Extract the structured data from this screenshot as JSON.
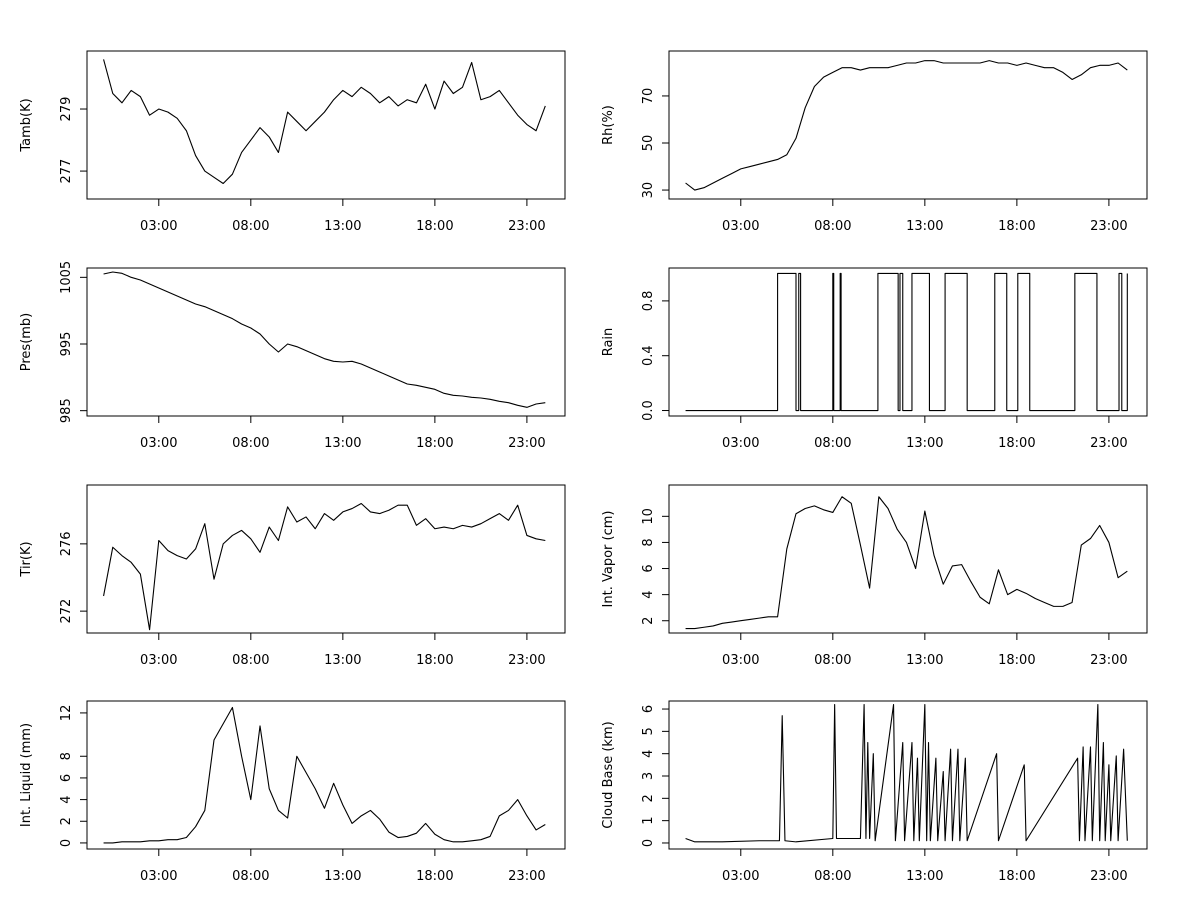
{
  "chart_data": [
    {
      "type": "line",
      "ylabel": "Tamb(K)",
      "color": "#000000",
      "x": [
        0,
        0.5,
        1,
        1.5,
        2,
        2.5,
        3,
        3.5,
        4,
        4.5,
        5,
        5.5,
        6,
        6.5,
        7,
        7.5,
        8,
        8.5,
        9,
        9.5,
        10,
        10.5,
        11,
        11.5,
        12,
        12.5,
        13,
        13.5,
        14,
        14.5,
        15,
        15.5,
        16,
        16.5,
        17,
        17.5,
        18,
        18.5,
        19,
        19.5,
        20,
        20.5,
        21,
        21.5,
        22,
        22.5,
        23,
        23.5,
        24
      ],
      "values": [
        280.6,
        279.5,
        279.2,
        279.6,
        279.4,
        278.8,
        279.0,
        278.9,
        278.7,
        278.3,
        277.5,
        277.0,
        276.8,
        276.6,
        276.9,
        277.6,
        278.0,
        278.4,
        278.1,
        277.6,
        278.9,
        278.6,
        278.3,
        278.6,
        278.9,
        279.3,
        279.6,
        279.4,
        279.7,
        279.5,
        279.2,
        279.4,
        279.1,
        279.3,
        279.2,
        279.8,
        279.0,
        279.9,
        279.5,
        279.7,
        280.5,
        279.3,
        279.4,
        279.6,
        279.2,
        278.8,
        278.5,
        278.3,
        279.1
      ],
      "xlim": [
        -0.9,
        25.07
      ],
      "ylim": [
        276.1,
        280.87
      ],
      "yticks": [
        277,
        279
      ],
      "xticks": [
        {
          "value": 3,
          "label": "03:00"
        },
        {
          "value": 8,
          "label": "08:00"
        },
        {
          "value": 13,
          "label": "13:00"
        },
        {
          "value": 18,
          "label": "18:00"
        },
        {
          "value": 23,
          "label": "23:00"
        }
      ]
    },
    {
      "type": "line",
      "ylabel": "Rh(%)",
      "color": "#000000",
      "x": [
        0,
        0.5,
        1,
        1.5,
        2,
        2.5,
        3,
        3.5,
        4,
        4.5,
        5,
        5.5,
        6,
        6.5,
        7,
        7.5,
        8,
        8.5,
        9,
        9.5,
        10,
        10.5,
        11,
        11.5,
        12,
        12.5,
        13,
        13.5,
        14,
        14.5,
        15,
        15.5,
        16,
        16.5,
        17,
        17.5,
        18,
        18.5,
        19,
        19.5,
        20,
        20.5,
        21,
        21.5,
        22,
        22.5,
        23,
        23.5,
        24
      ],
      "values": [
        33,
        30,
        31,
        33,
        35,
        37,
        39,
        40,
        41,
        42,
        43,
        45,
        52,
        65,
        74,
        78,
        80,
        82,
        82,
        81,
        82,
        82,
        82,
        83,
        84,
        84,
        85,
        85,
        84,
        84,
        84,
        84,
        84,
        85,
        84,
        84,
        83,
        84,
        83,
        82,
        82,
        80,
        77,
        79,
        82,
        83,
        83,
        84,
        81
      ],
      "xlim": [
        -0.9,
        25.07
      ],
      "ylim": [
        26.2,
        89.1
      ],
      "yticks": [
        30,
        50,
        70
      ],
      "xticks": [
        {
          "value": 3,
          "label": "03:00"
        },
        {
          "value": 8,
          "label": "08:00"
        },
        {
          "value": 13,
          "label": "13:00"
        },
        {
          "value": 18,
          "label": "18:00"
        },
        {
          "value": 23,
          "label": "23:00"
        }
      ]
    },
    {
      "type": "line",
      "ylabel": "Pres(mb)",
      "color": "#000000",
      "x": [
        0,
        0.5,
        1,
        1.5,
        2,
        2.5,
        3,
        3.5,
        4,
        4.5,
        5,
        5.5,
        6,
        6.5,
        7,
        7.5,
        8,
        8.5,
        9,
        9.5,
        10,
        10.5,
        11,
        11.5,
        12,
        12.5,
        13,
        13.5,
        14,
        14.5,
        15,
        15.5,
        16,
        16.5,
        17,
        17.5,
        18,
        18.5,
        19,
        19.5,
        20,
        20.5,
        21,
        21.5,
        22,
        22.5,
        23,
        23.5,
        24
      ],
      "values": [
        1005.5,
        1005.8,
        1005.6,
        1005.0,
        1004.6,
        1004.0,
        1003.4,
        1002.8,
        1002.2,
        1001.6,
        1001.0,
        1000.6,
        1000.0,
        999.4,
        998.8,
        998.0,
        997.4,
        996.5,
        995.0,
        993.8,
        995.0,
        994.6,
        994.0,
        993.4,
        992.8,
        992.4,
        992.3,
        992.4,
        992.0,
        991.4,
        990.8,
        990.2,
        989.6,
        989.0,
        988.8,
        988.5,
        988.2,
        987.6,
        987.3,
        987.2,
        987.0,
        986.9,
        986.7,
        986.4,
        986.2,
        985.8,
        985.5,
        986.0,
        986.2
      ],
      "xlim": [
        -0.9,
        25.07
      ],
      "ylim": [
        984.2,
        1006.4
      ],
      "yticks": [
        985,
        995,
        1005
      ],
      "xticks": [
        {
          "value": 3,
          "label": "03:00"
        },
        {
          "value": 8,
          "label": "08:00"
        },
        {
          "value": 13,
          "label": "13:00"
        },
        {
          "value": 18,
          "label": "18:00"
        },
        {
          "value": 23,
          "label": "23:00"
        }
      ]
    },
    {
      "type": "line",
      "ylabel": "Rain",
      "color": "#000000",
      "x": [
        0,
        5,
        5,
        6,
        6,
        6.15,
        6.15,
        6.25,
        6.25,
        8,
        8,
        8.05,
        8.05,
        8.4,
        8.4,
        8.45,
        8.45,
        10.45,
        10.45,
        11.55,
        11.55,
        11.65,
        11.65,
        11.8,
        11.8,
        12.3,
        12.3,
        13.25,
        13.25,
        14.1,
        14.1,
        15.3,
        15.3,
        16.8,
        16.8,
        17.45,
        17.45,
        18.05,
        18.05,
        18.7,
        18.7,
        21.15,
        21.15,
        22.35,
        22.35,
        23.55,
        23.55,
        23.7,
        23.7,
        24,
        24
      ],
      "values": [
        0,
        0,
        1,
        1,
        0,
        0,
        1,
        1,
        0,
        0,
        1,
        1,
        0,
        0,
        1,
        1,
        0,
        0,
        1,
        1,
        0,
        0,
        1,
        1,
        0,
        0,
        1,
        1,
        0,
        0,
        1,
        1,
        0,
        0,
        1,
        1,
        0,
        0,
        1,
        1,
        0,
        0,
        1,
        1,
        0,
        0,
        1,
        1,
        0,
        0,
        1
      ],
      "xlim": [
        -0.9,
        25.07
      ],
      "ylim": [
        -0.04,
        1.04
      ],
      "yticks": [
        {
          "value": 0,
          "label": "0.0"
        },
        0.4,
        0.8
      ],
      "xticks": [
        {
          "value": 3,
          "label": "03:00"
        },
        {
          "value": 8,
          "label": "08:00"
        },
        {
          "value": 13,
          "label": "13:00"
        },
        {
          "value": 18,
          "label": "18:00"
        },
        {
          "value": 23,
          "label": "23:00"
        }
      ]
    },
    {
      "type": "line",
      "ylabel": "Tir(K)",
      "color": "#000000",
      "x": [
        0,
        0.5,
        1,
        1.5,
        2,
        2.5,
        3,
        3.5,
        4,
        4.5,
        5,
        5.5,
        6,
        6.5,
        7,
        7.5,
        8,
        8.5,
        9,
        9.5,
        10,
        10.5,
        11,
        11.5,
        12,
        12.5,
        13,
        13.5,
        14,
        14.5,
        15,
        15.5,
        16,
        16.5,
        17,
        17.5,
        18,
        18.5,
        19,
        19.5,
        20,
        20.5,
        21,
        21.5,
        22,
        22.5,
        23,
        23.5,
        24
      ],
      "values": [
        272.9,
        275.8,
        275.3,
        274.9,
        274.2,
        270.9,
        276.2,
        275.6,
        275.3,
        275.1,
        275.7,
        277.2,
        273.9,
        276.0,
        276.5,
        276.8,
        276.3,
        275.5,
        277.0,
        276.2,
        278.2,
        277.3,
        277.6,
        276.9,
        277.8,
        277.4,
        277.9,
        278.1,
        278.4,
        277.9,
        277.8,
        278.0,
        278.3,
        278.3,
        277.1,
        277.5,
        276.9,
        277.0,
        276.9,
        277.1,
        277.0,
        277.2,
        277.5,
        277.8,
        277.4,
        278.3,
        276.5,
        276.3,
        276.2
      ],
      "xlim": [
        -0.9,
        25.07
      ],
      "ylim": [
        270.7,
        279.5
      ],
      "yticks": [
        272,
        276
      ],
      "xticks": [
        {
          "value": 3,
          "label": "03:00"
        },
        {
          "value": 8,
          "label": "08:00"
        },
        {
          "value": 13,
          "label": "13:00"
        },
        {
          "value": 18,
          "label": "18:00"
        },
        {
          "value": 23,
          "label": "23:00"
        }
      ]
    },
    {
      "type": "line",
      "ylabel": "Int. Vapor (cm)",
      "color": "#000000",
      "x": [
        0,
        0.5,
        1,
        1.5,
        2,
        2.5,
        3,
        3.5,
        4,
        4.5,
        5,
        5.5,
        6,
        6.5,
        7,
        7.5,
        8,
        8.5,
        9,
        9.5,
        10,
        10.5,
        11,
        11.5,
        12,
        12.5,
        13,
        13.5,
        14,
        14.5,
        15,
        15.5,
        16,
        16.5,
        17,
        17.5,
        18,
        18.5,
        19,
        19.5,
        20,
        20.5,
        21,
        21.5,
        22,
        22.5,
        23,
        23.5,
        24
      ],
      "values": [
        1.4,
        1.4,
        1.5,
        1.6,
        1.8,
        1.9,
        2.0,
        2.1,
        2.2,
        2.3,
        2.3,
        7.5,
        10.2,
        10.6,
        10.8,
        10.5,
        10.3,
        11.5,
        11.0,
        7.8,
        4.5,
        11.5,
        10.6,
        9.0,
        8.0,
        6.0,
        10.4,
        7.0,
        4.8,
        6.2,
        6.3,
        5.0,
        3.8,
        3.3,
        5.9,
        4.0,
        4.4,
        4.1,
        3.7,
        3.4,
        3.1,
        3.1,
        3.4,
        7.8,
        8.3,
        9.3,
        8.0,
        5.3,
        5.8
      ],
      "xlim": [
        -0.9,
        25.07
      ],
      "ylim": [
        1.06,
        12.4
      ],
      "yticks": [
        2,
        4,
        6,
        8,
        10
      ],
      "xticks": [
        {
          "value": 3,
          "label": "03:00"
        },
        {
          "value": 8,
          "label": "08:00"
        },
        {
          "value": 13,
          "label": "13:00"
        },
        {
          "value": 18,
          "label": "18:00"
        },
        {
          "value": 23,
          "label": "23:00"
        }
      ]
    },
    {
      "type": "line",
      "ylabel": "Int. Liquid (mm)",
      "color": "#000000",
      "x": [
        0,
        0.5,
        1,
        1.5,
        2,
        2.5,
        3,
        3.5,
        4,
        4.5,
        5,
        5.5,
        6,
        6.5,
        7,
        7.5,
        8,
        8.5,
        9,
        9.5,
        10,
        10.5,
        11,
        11.5,
        12,
        12.5,
        13,
        13.5,
        14,
        14.5,
        15,
        15.5,
        16,
        16.5,
        17,
        17.5,
        18,
        18.5,
        19,
        19.5,
        20,
        20.5,
        21,
        21.5,
        22,
        22.5,
        23,
        23.5,
        24
      ],
      "values": [
        0,
        0,
        0.1,
        0.1,
        0.1,
        0.2,
        0.2,
        0.3,
        0.3,
        0.5,
        1.5,
        3.0,
        9.5,
        11.0,
        12.5,
        8.0,
        4.0,
        10.8,
        5.0,
        3.0,
        2.3,
        8.0,
        6.5,
        5.0,
        3.2,
        5.5,
        3.5,
        1.8,
        2.5,
        3.0,
        2.2,
        1.0,
        0.5,
        0.6,
        0.9,
        1.8,
        0.8,
        0.3,
        0.1,
        0.1,
        0.2,
        0.3,
        0.6,
        2.5,
        3.0,
        4.0,
        2.5,
        1.2,
        1.7
      ],
      "xlim": [
        -0.9,
        25.07
      ],
      "ylim": [
        -0.56,
        13.1
      ],
      "yticks": [
        0,
        2,
        4,
        6,
        8,
        12
      ],
      "xticks": [
        {
          "value": 3,
          "label": "03:00"
        },
        {
          "value": 8,
          "label": "08:00"
        },
        {
          "value": 13,
          "label": "13:00"
        },
        {
          "value": 18,
          "label": "18:00"
        },
        {
          "value": 23,
          "label": "23:00"
        }
      ]
    },
    {
      "type": "line",
      "ylabel": "Cloud Base (km)",
      "color": "#000000",
      "x": [
        0,
        0.5,
        2,
        4,
        5.1,
        5.25,
        5.4,
        6,
        8,
        8.1,
        8.2,
        9.5,
        9.7,
        9.8,
        9.9,
        10.0,
        10.2,
        10.3,
        11.3,
        11.4,
        11.8,
        11.9,
        12.3,
        12.4,
        12.6,
        12.7,
        13.0,
        13.1,
        13.2,
        13.3,
        13.6,
        13.7,
        14.0,
        14.1,
        14.4,
        14.5,
        14.8,
        14.9,
        15.2,
        15.3,
        16.9,
        17.0,
        18.4,
        18.5,
        21.3,
        21.4,
        21.6,
        21.7,
        22.0,
        22.1,
        22.4,
        22.5,
        22.7,
        22.8,
        23.0,
        23.1,
        23.4,
        23.5,
        23.8,
        24
      ],
      "values": [
        0.2,
        0.05,
        0.05,
        0.1,
        0.1,
        5.7,
        0.1,
        0.05,
        0.2,
        6.2,
        0.2,
        0.2,
        6.2,
        0.2,
        4.5,
        0.2,
        4.0,
        0.1,
        6.2,
        0.1,
        4.5,
        0.1,
        4.5,
        0.1,
        3.8,
        0.1,
        6.2,
        0.1,
        4.5,
        0.1,
        3.8,
        0.1,
        3.2,
        0.1,
        4.2,
        0.1,
        4.2,
        0.1,
        3.8,
        0.1,
        4.0,
        0.1,
        3.5,
        0.1,
        3.8,
        0.1,
        4.3,
        0.1,
        4.3,
        0.1,
        6.2,
        0.1,
        4.5,
        0.1,
        3.5,
        0.1,
        3.9,
        0.1,
        4.2,
        0.1
      ],
      "xlim": [
        -0.9,
        25.07
      ],
      "ylim": [
        -0.27,
        6.36
      ],
      "yticks": [
        0,
        1,
        2,
        3,
        4,
        5,
        6
      ],
      "xticks": [
        {
          "value": 3,
          "label": "03:00"
        },
        {
          "value": 8,
          "label": "08:00"
        },
        {
          "value": 13,
          "label": "13:00"
        },
        {
          "value": 18,
          "label": "18:00"
        },
        {
          "value": 23,
          "label": "23:00"
        }
      ]
    }
  ]
}
